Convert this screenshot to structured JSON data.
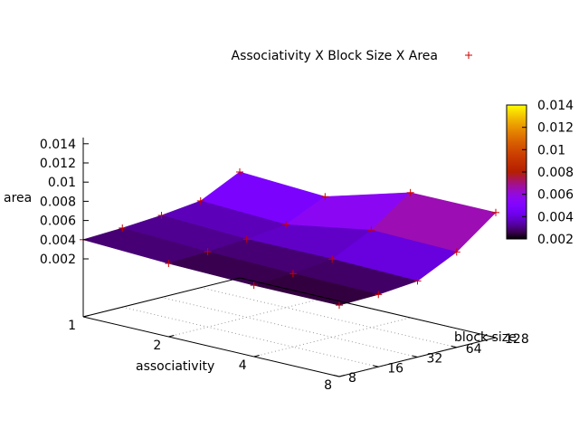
{
  "chart_data": {
    "type": "surface3d",
    "legend_label": "Associativity X Block Size X Area",
    "x_axis": {
      "label": "associativity",
      "ticks": [
        "1",
        "2",
        "4",
        "8"
      ],
      "values": [
        1,
        2,
        4,
        8
      ],
      "scale": "log2"
    },
    "y_axis": {
      "label": "block size",
      "ticks": [
        "8",
        "16",
        "32",
        "64",
        "128"
      ],
      "values": [
        8,
        16,
        32,
        64,
        128
      ],
      "scale": "log2"
    },
    "z_axis": {
      "label": "area",
      "ticks": [
        "0.002",
        "0.004",
        "0.006",
        "0.008",
        "0.01",
        "0.012",
        "0.014"
      ],
      "range": [
        0.001,
        0.014
      ]
    },
    "colorbar": {
      "ticks": [
        "0.014",
        "0.012",
        "0.01",
        "0.008",
        "0.006",
        "0.004",
        "0.002"
      ],
      "range": [
        0.002,
        0.014
      ]
    },
    "grid": true,
    "legend_position": "top-right",
    "area": [
      [
        0.003,
        0.0032,
        0.0035,
        0.004,
        0.006
      ],
      [
        0.0026,
        0.0028,
        0.0031,
        0.0036,
        0.0055
      ],
      [
        0.0024,
        0.0026,
        0.0031,
        0.0051,
        0.008
      ],
      [
        0.0024,
        0.0025,
        0.0029,
        0.0049,
        0.008
      ]
    ],
    "colors": {
      "point": "#cc0000"
    }
  }
}
